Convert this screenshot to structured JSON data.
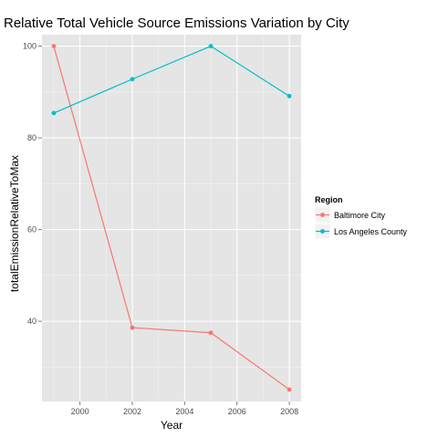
{
  "chart_data": {
    "type": "line",
    "title": "Relative Total Vehicle Source Emissions Variation by City",
    "xlabel": "Year",
    "ylabel": "totalEmissionRelativeToMax",
    "x": [
      1999,
      2002,
      2005,
      2008
    ],
    "xlim": [
      1998.55,
      2008.45
    ],
    "ylim": [
      22.5,
      102.5
    ],
    "xticks": [
      2000,
      2002,
      2004,
      2006,
      2008
    ],
    "yticks": [
      40,
      60,
      80,
      100
    ],
    "grid": true,
    "legend": {
      "title": "Region",
      "position": "right"
    },
    "series": [
      {
        "name": "Baltimore City",
        "color": "#F8766D",
        "values": [
          100,
          38.6,
          37.5,
          25.1
        ]
      },
      {
        "name": "Los Angeles County",
        "color": "#00BFC4",
        "values": [
          85.4,
          92.8,
          100,
          89.1
        ]
      }
    ]
  }
}
